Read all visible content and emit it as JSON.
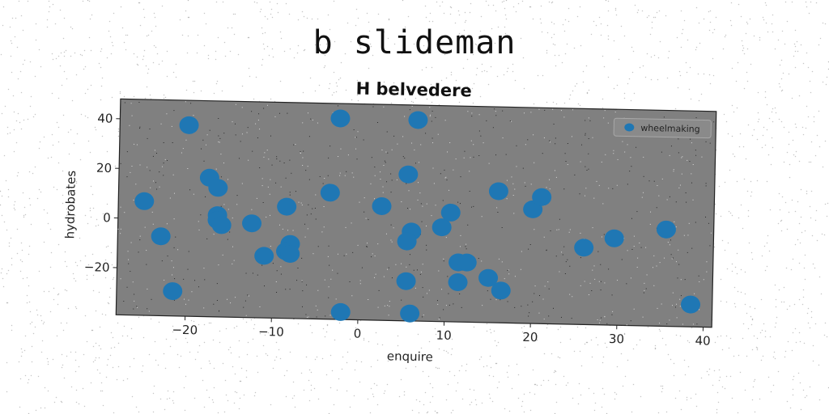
{
  "figure_title": "b slideman",
  "chart_data": {
    "type": "scatter",
    "title": "H belvedere",
    "xlabel": "enquire",
    "ylabel": "hydrobates",
    "xlim": [
      -28,
      41
    ],
    "ylim": [
      -39,
      48
    ],
    "xticks": [
      -20,
      -10,
      0,
      10,
      20,
      30,
      40
    ],
    "yticks": [
      -20,
      0,
      20,
      40
    ],
    "xtick_labels": [
      "−20",
      "−10",
      "0",
      "10",
      "20",
      "30",
      "40"
    ],
    "ytick_labels": [
      "−20",
      "0",
      "20",
      "40"
    ],
    "grid": false,
    "legend": "top-right",
    "colors": {
      "marker": "#1f77b4",
      "plot_background": "#808080"
    },
    "series": [
      {
        "name": "wheelmaking",
        "points": [
          [
            -20,
            38
          ],
          [
            -2.5,
            42
          ],
          [
            6.5,
            42
          ],
          [
            -17.5,
            17
          ],
          [
            -16.5,
            13
          ],
          [
            -25,
            7
          ],
          [
            -16.5,
            2
          ],
          [
            -16.5,
            0
          ],
          [
            -16,
            -2
          ],
          [
            -23,
            -7
          ],
          [
            -12.5,
            -1
          ],
          [
            -8.5,
            6
          ],
          [
            -3.5,
            12
          ],
          [
            2.5,
            7
          ],
          [
            5.5,
            20
          ],
          [
            -8,
            -9
          ],
          [
            -8.5,
            -12
          ],
          [
            -8,
            -13
          ],
          [
            -11,
            -14
          ],
          [
            -21.5,
            -29
          ],
          [
            -2,
            -36
          ],
          [
            6,
            -36
          ],
          [
            6,
            -3
          ],
          [
            5.5,
            -7
          ],
          [
            5.5,
            -23
          ],
          [
            9.5,
            -1
          ],
          [
            10.5,
            5
          ],
          [
            11.5,
            -15
          ],
          [
            12.5,
            -15
          ],
          [
            11.5,
            -23
          ],
          [
            15,
            -21
          ],
          [
            16.5,
            -26
          ],
          [
            16,
            14
          ],
          [
            20,
            7
          ],
          [
            21,
            12
          ],
          [
            26,
            -8
          ],
          [
            29.5,
            -4
          ],
          [
            35.5,
            0
          ],
          [
            38.5,
            -30
          ]
        ]
      }
    ]
  }
}
